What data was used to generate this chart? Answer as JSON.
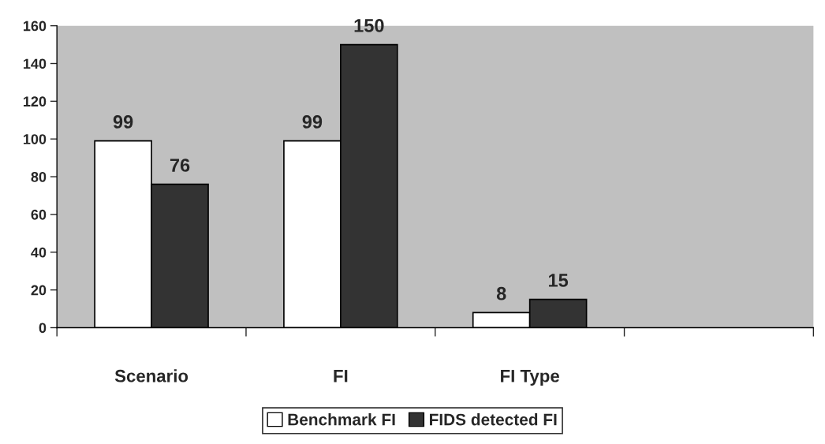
{
  "chart_data": {
    "type": "bar",
    "categories": [
      "Scenario",
      "FI",
      "FI Type",
      null
    ],
    "series": [
      {
        "name": "Benchmark FI",
        "color": "#ffffff",
        "values": [
          99,
          99,
          8,
          null
        ]
      },
      {
        "name": "FIDS detected FI",
        "color": "#333333",
        "values": [
          76,
          150,
          15,
          null
        ]
      }
    ],
    "ylim": [
      0,
      160
    ],
    "yticks": [
      0,
      20,
      40,
      60,
      80,
      100,
      120,
      140,
      160
    ],
    "grid": false,
    "legend": "bottom",
    "data_labels": true
  }
}
